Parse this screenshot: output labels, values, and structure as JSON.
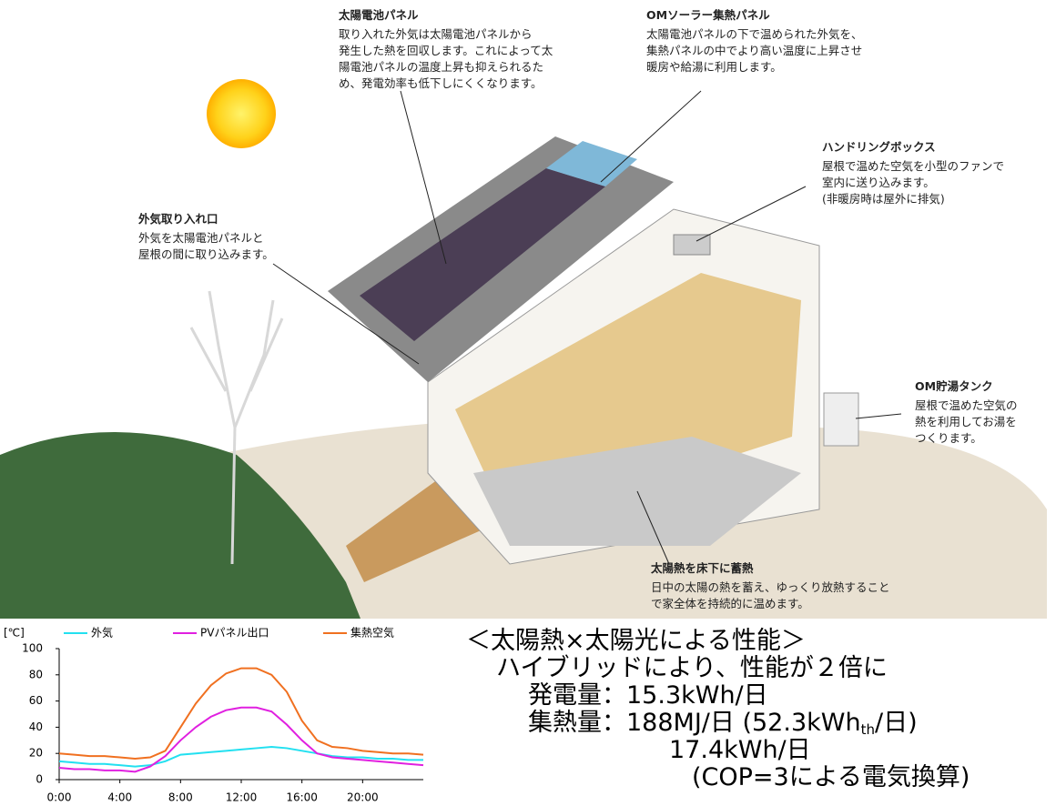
{
  "annotations": [
    {
      "title": "太陽電池パネル",
      "lines": [
        "取り入れた外気は太陽電池パネルから",
        "発生した熱を回収します。これによって太",
        "陽電池パネルの温度上昇も抑えられるた",
        "め、発電効率も低下しにくくなります。"
      ]
    },
    {
      "title": "OMソーラー集熱パネル",
      "lines": [
        "太陽電池パネルの下で温められた外気を、",
        "集熱パネルの中でより高い温度に上昇させ",
        "暖房や給湯に利用します。"
      ]
    },
    {
      "title": "ハンドリングボックス",
      "lines": [
        "屋根で温めた空気を小型のファンで",
        "室内に送り込みます。",
        "(非暖房時は屋外に排気)"
      ]
    },
    {
      "title": "外気取り入れ口",
      "lines": [
        "外気を太陽電池パネルと",
        "屋根の間に取り込みます。"
      ]
    },
    {
      "title": "OM貯湯タンク",
      "lines": [
        "屋根で温めた空気の",
        "熱を利用してお湯を",
        "つくります。"
      ]
    },
    {
      "title": "太陽熱を床下に蓄熱",
      "lines": [
        "日中の太陽の熱を蓄え、ゆっくり放熱すること",
        "で家全体を持続的に温めます。"
      ]
    }
  ],
  "performance": {
    "heading": "＜太陽熱×太陽光による性能＞",
    "subheading": "ハイブリッドにより、性能が２倍に",
    "power": "発電量：15.3kWh/日",
    "heat": {
      "before": "集熱量：188MJ/日 (52.3kWh",
      "sub": "th",
      "after": "/日)"
    },
    "heat_elec": "17.4kWh/日",
    "note": "(COP=3による電気換算)"
  },
  "chart_data": {
    "type": "line",
    "y_unit": "[℃]",
    "x": [
      0,
      1,
      2,
      3,
      4,
      5,
      6,
      7,
      8,
      9,
      10,
      11,
      12,
      13,
      14,
      15,
      16,
      17,
      18,
      19,
      20,
      21,
      22,
      23,
      24
    ],
    "xlim": [
      0,
      24
    ],
    "xticks": [
      {
        "value": 0,
        "label": "0:00"
      },
      {
        "value": 4,
        "label": "4:00"
      },
      {
        "value": 8,
        "label": "8:00"
      },
      {
        "value": 12,
        "label": "12:00"
      },
      {
        "value": 16,
        "label": "16:00"
      },
      {
        "value": 20,
        "label": "20:00"
      }
    ],
    "ylim": [
      0,
      100
    ],
    "yticks": [
      0,
      20,
      40,
      60,
      80,
      100
    ],
    "series": [
      {
        "name": "外気",
        "color": "#22e0f0",
        "values": [
          14,
          13,
          12,
          12,
          11,
          10,
          11,
          14,
          19,
          20,
          21,
          22,
          23,
          24,
          25,
          24,
          22,
          20,
          18,
          17,
          17,
          16,
          16,
          15,
          15
        ]
      },
      {
        "name": "PVパネル出口",
        "color": "#e020e0",
        "values": [
          9,
          8,
          8,
          7,
          7,
          6,
          10,
          18,
          30,
          40,
          48,
          53,
          55,
          55,
          52,
          42,
          30,
          20,
          17,
          16,
          15,
          14,
          13,
          12,
          11
        ]
      },
      {
        "name": "集熱空気",
        "color": "#f07020",
        "values": [
          20,
          19,
          18,
          18,
          17,
          16,
          17,
          22,
          40,
          58,
          72,
          81,
          85,
          85,
          80,
          67,
          45,
          30,
          25,
          24,
          22,
          21,
          20,
          20,
          19
        ]
      }
    ]
  }
}
